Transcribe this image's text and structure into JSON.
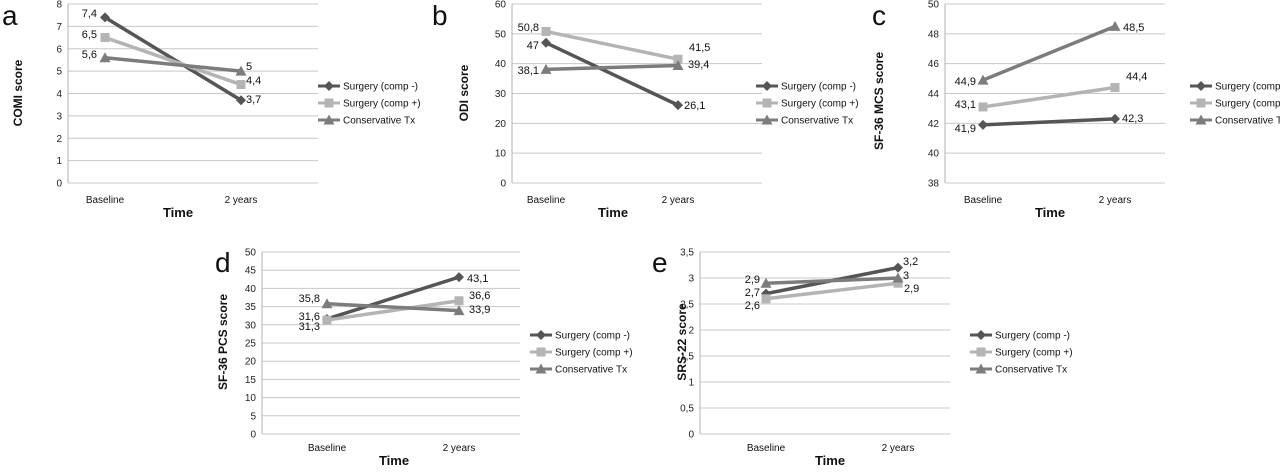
{
  "chart_data": [
    {
      "type": "line",
      "panel_label": "a",
      "ylabel": "COMI score",
      "xlabel": "Time",
      "categories": [
        "Baseline",
        "2 years"
      ],
      "ylim": [
        0,
        8
      ],
      "yticks": [
        "0",
        "1",
        "2",
        "3",
        "4",
        "5",
        "6",
        "7",
        "8"
      ],
      "grid": true,
      "legend": "right",
      "series": [
        {
          "name": "Surgery (comp -)",
          "values": [
            7.4,
            3.7
          ],
          "labels": [
            "7,4",
            "3,7"
          ]
        },
        {
          "name": "Surgery (comp +)",
          "values": [
            6.5,
            4.4
          ],
          "labels": [
            "6,5",
            "4,4"
          ]
        },
        {
          "name": "Conservative Tx",
          "values": [
            5.6,
            5.0
          ],
          "labels": [
            "5,6",
            "5"
          ]
        }
      ]
    },
    {
      "type": "line",
      "panel_label": "b",
      "ylabel": "ODI score",
      "xlabel": "Time",
      "categories": [
        "Baseline",
        "2 years"
      ],
      "ylim": [
        0,
        60
      ],
      "yticks": [
        "0",
        "10",
        "20",
        "30",
        "40",
        "50",
        "60"
      ],
      "grid": true,
      "legend": "right",
      "series": [
        {
          "name": "Surgery (comp -)",
          "values": [
            47,
            26.1
          ],
          "labels": [
            "47",
            "26,1"
          ]
        },
        {
          "name": "Surgery (comp +)",
          "values": [
            50.8,
            41.5
          ],
          "labels": [
            "50,8",
            "41,5"
          ]
        },
        {
          "name": "Conservative Tx",
          "values": [
            38.1,
            39.4
          ],
          "labels": [
            "38,1",
            "39,4"
          ]
        }
      ]
    },
    {
      "type": "line",
      "panel_label": "c",
      "ylabel": "SF-36 MCS score",
      "xlabel": "Time",
      "categories": [
        "Baseline",
        "2 years"
      ],
      "ylim": [
        38,
        50
      ],
      "yticks": [
        "38",
        "40",
        "42",
        "44",
        "46",
        "48",
        "50"
      ],
      "grid": true,
      "legend": "right",
      "series": [
        {
          "name": "Surgery (comp -)",
          "values": [
            41.9,
            42.3
          ],
          "labels": [
            "41,9",
            "42,3"
          ]
        },
        {
          "name": "Surgery (comp +)",
          "values": [
            43.1,
            44.4
          ],
          "labels": [
            "43,1",
            "44,4"
          ]
        },
        {
          "name": "Conservative Tx",
          "values": [
            44.9,
            48.5
          ],
          "labels": [
            "44,9",
            "48,5"
          ]
        }
      ]
    },
    {
      "type": "line",
      "panel_label": "d",
      "ylabel": "SF-36 PCS score",
      "xlabel": "Time",
      "categories": [
        "Baseline",
        "2 years"
      ],
      "ylim": [
        0,
        50
      ],
      "yticks": [
        "0",
        "5",
        "10",
        "15",
        "20",
        "25",
        "30",
        "35",
        "40",
        "45",
        "50"
      ],
      "grid": true,
      "legend": "right",
      "series": [
        {
          "name": "Surgery (comp -)",
          "values": [
            31.6,
            43.1
          ],
          "labels": [
            "31,6",
            "43,1"
          ]
        },
        {
          "name": "Surgery (comp +)",
          "values": [
            31.3,
            36.6
          ],
          "labels": [
            "31,3",
            "36,6"
          ]
        },
        {
          "name": "Conservative Tx",
          "values": [
            35.8,
            33.9
          ],
          "labels": [
            "35,8",
            "33,9"
          ]
        }
      ]
    },
    {
      "type": "line",
      "panel_label": "e",
      "ylabel": "SRS-22 score",
      "xlabel": "Time",
      "categories": [
        "Baseline",
        "2 years"
      ],
      "ylim": [
        0,
        3.5
      ],
      "yticks": [
        "0",
        "0,5",
        "1",
        "1,5",
        "2",
        "2,5",
        "3",
        "3,5"
      ],
      "grid": true,
      "legend": "right",
      "series": [
        {
          "name": "Surgery (comp -)",
          "values": [
            2.7,
            3.2
          ],
          "labels": [
            "2,7",
            "3,2"
          ]
        },
        {
          "name": "Surgery (comp +)",
          "values": [
            2.6,
            2.9
          ],
          "labels": [
            "2,6",
            "2,9"
          ]
        },
        {
          "name": "Conservative Tx",
          "values": [
            2.9,
            3.0
          ],
          "labels": [
            "2,9",
            "3"
          ]
        }
      ]
    }
  ],
  "series_colors": [
    "#555555",
    "#b4b4b4",
    "#7c7c7c"
  ],
  "series_markers": [
    "diamond",
    "square",
    "triangle"
  ]
}
